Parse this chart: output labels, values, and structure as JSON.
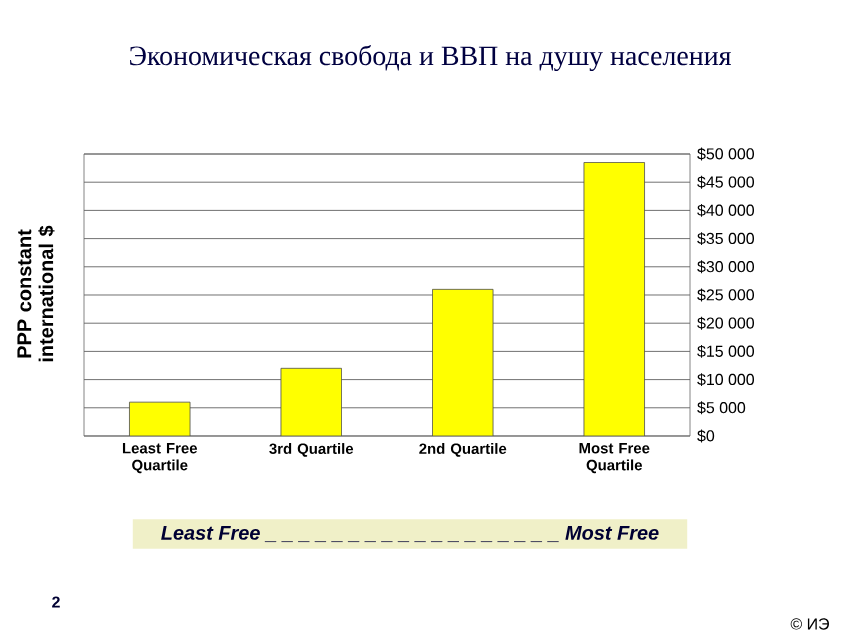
{
  "chart_data": {
    "type": "bar",
    "title": "Экономическая свобода и ВВП на душу населения",
    "ylabel": "PPP constant international $",
    "categories": [
      "Least Free Quartile",
      "3rd Quartile",
      "2nd Quartile",
      "Most Free Quartile"
    ],
    "values": [
      6000,
      12000,
      26000,
      48500
    ],
    "color": "#ffff00",
    "ylim": [
      0,
      50000
    ],
    "yticks": [
      {
        "value": 0,
        "label": "$0"
      },
      {
        "value": 5000,
        "label": "$5 000"
      },
      {
        "value": 10000,
        "label": "$10 000"
      },
      {
        "value": 15000,
        "label": "$15 000"
      },
      {
        "value": 20000,
        "label": "$20 000"
      },
      {
        "value": 25000,
        "label": "$25 000"
      },
      {
        "value": 30000,
        "label": "$30 000"
      },
      {
        "value": 35000,
        "label": "$35 000"
      },
      {
        "value": 40000,
        "label": "$40 000"
      },
      {
        "value": 45000,
        "label": "$45 000"
      },
      {
        "value": 50000,
        "label": "$50 000"
      }
    ],
    "grid": "y",
    "annotations": [
      "Least Free _ _ _ _ _ _ _ _ _ _ _ _ _ _ _ _ _ _ Most Free",
      "2",
      "© ИЭ"
    ]
  }
}
